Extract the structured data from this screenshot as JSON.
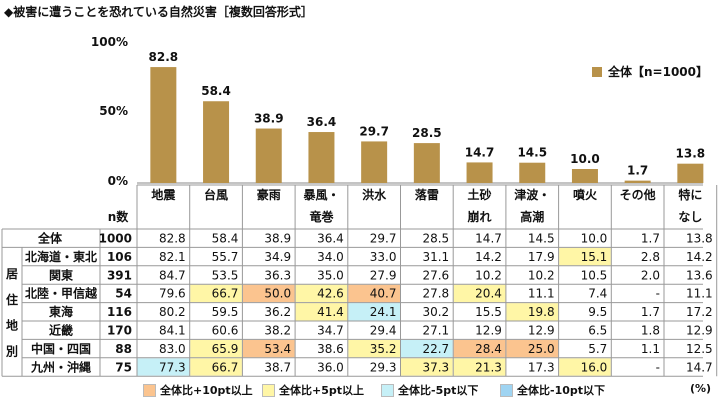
{
  "title": "◆被害に遭うことを恐れている自然災害［複数回答形式］",
  "colors": {
    "bar": "#b8924a",
    "plus10": "#fbc48f",
    "plus5": "#fff6a6",
    "minus5": "#c6f0f7",
    "minus10": "#9fd4f2"
  },
  "chart_data": {
    "type": "bar",
    "categories": [
      "地震",
      "台風",
      "豪雨",
      "暴風・竜巻",
      "洪水",
      "落雷",
      "土砂崩れ",
      "津波・高潮",
      "噴火",
      "その他",
      "特になし"
    ],
    "category_lines": [
      [
        "地震"
      ],
      [
        "台風"
      ],
      [
        "豪雨"
      ],
      [
        "暴風・",
        "竜巻"
      ],
      [
        "洪水"
      ],
      [
        "落雷"
      ],
      [
        "土砂",
        "崩れ"
      ],
      [
        "津波・",
        "高潮"
      ],
      [
        "噴火"
      ],
      [
        "その他"
      ],
      [
        "特に",
        "なし"
      ]
    ],
    "series": [
      {
        "name": "全体【n=1000】",
        "values": [
          82.8,
          58.4,
          38.9,
          36.4,
          29.7,
          28.5,
          14.7,
          14.5,
          10.0,
          1.7,
          13.8
        ]
      }
    ],
    "value_labels": [
      "82.8",
      "58.4",
      "38.9",
      "36.4",
      "29.7",
      "28.5",
      "14.7",
      "14.5",
      "10.0",
      "1.7",
      "13.8"
    ],
    "yticks": [
      "100%",
      "50%",
      "0%"
    ],
    "ylim": [
      0,
      100
    ],
    "legend": "top-right",
    "grid": false
  },
  "table": {
    "n_header": "n数",
    "region_group_label": "居住地別",
    "rows": [
      {
        "label": "全体",
        "n": "1000",
        "values": [
          "82.8",
          "58.4",
          "38.9",
          "36.4",
          "29.7",
          "28.5",
          "14.7",
          "14.5",
          "10.0",
          "1.7",
          "13.8"
        ],
        "flags": [
          "",
          "",
          "",
          "",
          "",
          "",
          "",
          "",
          "",
          "",
          ""
        ]
      },
      {
        "label": "北海道・東北",
        "n": "106",
        "values": [
          "82.1",
          "55.7",
          "34.9",
          "34.0",
          "33.0",
          "31.1",
          "14.2",
          "17.9",
          "15.1",
          "2.8",
          "14.2"
        ],
        "flags": [
          "",
          "",
          "",
          "",
          "",
          "",
          "",
          "",
          "plus5",
          "",
          ""
        ]
      },
      {
        "label": "関東",
        "n": "391",
        "values": [
          "84.7",
          "53.5",
          "36.3",
          "35.0",
          "27.9",
          "27.6",
          "10.2",
          "10.2",
          "10.5",
          "2.0",
          "13.6"
        ],
        "flags": [
          "",
          "",
          "",
          "",
          "",
          "",
          "",
          "",
          "",
          "",
          ""
        ]
      },
      {
        "label": "北陸・甲信越",
        "n": "54",
        "values": [
          "79.6",
          "66.7",
          "50.0",
          "42.6",
          "40.7",
          "27.8",
          "20.4",
          "11.1",
          "7.4",
          "-",
          "11.1"
        ],
        "flags": [
          "",
          "plus5",
          "plus10",
          "plus5",
          "plus10",
          "",
          "plus5",
          "",
          "",
          "",
          ""
        ]
      },
      {
        "label": "東海",
        "n": "116",
        "values": [
          "80.2",
          "59.5",
          "36.2",
          "41.4",
          "24.1",
          "30.2",
          "15.5",
          "19.8",
          "9.5",
          "1.7",
          "17.2"
        ],
        "flags": [
          "",
          "",
          "",
          "plus5",
          "minus5",
          "",
          "",
          "plus5",
          "",
          "",
          ""
        ]
      },
      {
        "label": "近畿",
        "n": "170",
        "values": [
          "84.1",
          "60.6",
          "38.2",
          "34.7",
          "29.4",
          "27.1",
          "12.9",
          "12.9",
          "6.5",
          "1.8",
          "12.9"
        ],
        "flags": [
          "",
          "",
          "",
          "",
          "",
          "",
          "",
          "",
          "",
          "",
          ""
        ]
      },
      {
        "label": "中国・四国",
        "n": "88",
        "values": [
          "83.0",
          "65.9",
          "53.4",
          "38.6",
          "35.2",
          "22.7",
          "28.4",
          "25.0",
          "5.7",
          "1.1",
          "12.5"
        ],
        "flags": [
          "",
          "plus5",
          "plus10",
          "",
          "plus5",
          "minus5",
          "plus10",
          "plus10",
          "",
          "",
          ""
        ]
      },
      {
        "label": "九州・沖縄",
        "n": "75",
        "values": [
          "77.3",
          "66.7",
          "38.7",
          "36.0",
          "29.3",
          "37.3",
          "21.3",
          "17.3",
          "16.0",
          "-",
          "14.7"
        ],
        "flags": [
          "minus5",
          "plus5",
          "",
          "",
          "",
          "plus5",
          "plus5",
          "",
          "plus5",
          "",
          ""
        ]
      }
    ]
  },
  "color_legend": [
    {
      "key": "plus10",
      "label": "全体比+10pt以上"
    },
    {
      "key": "plus5",
      "label": "全体比+5pt以上"
    },
    {
      "key": "minus5",
      "label": "全体比-5pt以下"
    },
    {
      "key": "minus10",
      "label": "全体比-10pt以下"
    }
  ],
  "unit_note": "(%)"
}
